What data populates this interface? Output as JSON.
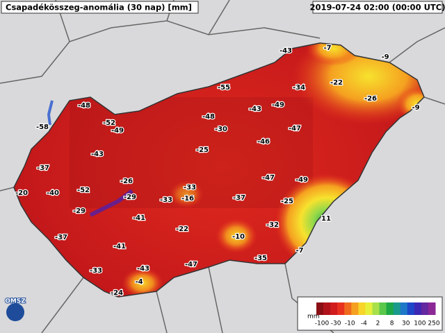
{
  "header": {
    "title": "Csapadékösszeg-anomália (30 nap) [mm]",
    "timestamp": "2019-07-24 02:00 (00:00 UTC)"
  },
  "logo": "OMSZ",
  "stations": [
    -43,
    -7,
    -9,
    -55,
    -34,
    -22,
    -26,
    -9,
    -48,
    -43,
    -49,
    -58,
    -52,
    -49,
    -48,
    -30,
    -47,
    -46,
    -25,
    -43,
    -37,
    -47,
    -49,
    -26,
    -52,
    -33,
    -20,
    -40,
    -29,
    -16,
    -33,
    -37,
    -25,
    -29,
    -41,
    11,
    -22,
    -32,
    -10,
    -37,
    -41,
    -7,
    -35,
    -47,
    -43,
    -33,
    -4,
    -24
  ],
  "legend": {
    "unit": "mm",
    "ticks": [
      -100,
      -30,
      -10,
      -4,
      2,
      8,
      30,
      100,
      250
    ],
    "colors": [
      "#8a0f14",
      "#b0141a",
      "#d01c1c",
      "#e8321e",
      "#f06a1e",
      "#f5a020",
      "#f7d52a",
      "#e6f03c",
      "#a8e04a",
      "#5ac84a",
      "#1ea846",
      "#1a9a8c",
      "#1e78c8",
      "#1e46c8",
      "#3c28b4",
      "#6428a0",
      "#8c2896"
    ]
  }
}
